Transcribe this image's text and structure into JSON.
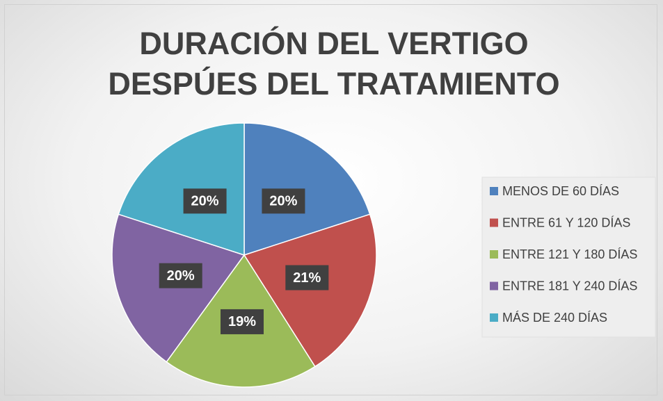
{
  "chart_data": {
    "type": "pie",
    "title": "DURACIÓN DEL VERTIGO DESPÚES DEL TRATAMIENTO",
    "categories": [
      "MENOS DE 60 DÍAS",
      "ENTRE 61 Y 120 DÍAS",
      "ENTRE 121 Y 180 DÍAS",
      "ENTRE 181 Y 240 DÍAS",
      "MÁS DE 240 DÍAS"
    ],
    "values": [
      20,
      21,
      19,
      20,
      20
    ],
    "value_labels": [
      "20%",
      "21%",
      "19%",
      "20%",
      "20%"
    ],
    "colors": [
      "#4f81bd",
      "#c0504d",
      "#9bbb59",
      "#8064a2",
      "#4bacc6"
    ],
    "legend": "right"
  }
}
